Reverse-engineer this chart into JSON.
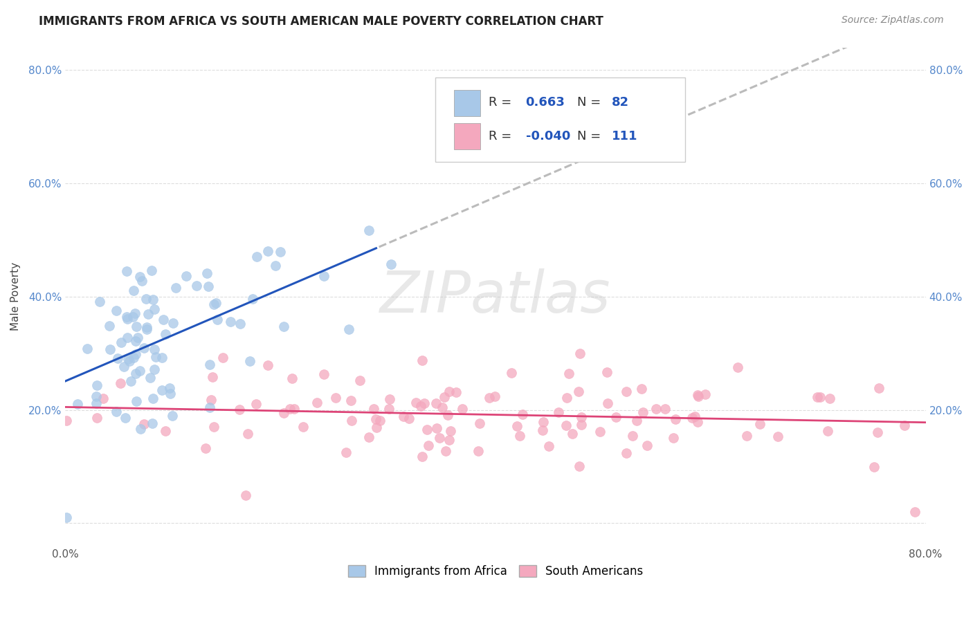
{
  "title": "IMMIGRANTS FROM AFRICA VS SOUTH AMERICAN MALE POVERTY CORRELATION CHART",
  "source": "Source: ZipAtlas.com",
  "ylabel": "Male Poverty",
  "africa_R": 0.663,
  "africa_N": 82,
  "south_R": -0.04,
  "south_N": 111,
  "xlim": [
    0.0,
    0.8
  ],
  "ylim": [
    -0.04,
    0.84
  ],
  "africa_color": "#A8C8E8",
  "south_color": "#F4A8BE",
  "africa_line_color": "#2255BB",
  "south_line_color": "#DD4477",
  "dash_color": "#BBBBBB",
  "watermark": "ZIPatlas",
  "legend_africa": "Immigrants from Africa",
  "legend_south": "South Americans",
  "yticks": [
    0.0,
    0.2,
    0.4,
    0.6,
    0.8
  ],
  "ytick_labels": [
    "",
    "20.0%",
    "40.0%",
    "60.0%",
    "80.0%"
  ],
  "xticks": [
    0.0,
    0.1,
    0.2,
    0.3,
    0.4,
    0.5,
    0.6,
    0.7,
    0.8
  ],
  "xtick_labels": [
    "0.0%",
    "",
    "",
    "",
    "",
    "",
    "",
    "",
    "80.0%"
  ],
  "grid_color": "#DDDDDD",
  "title_fontsize": 12,
  "tick_fontsize": 11,
  "legend_fontsize": 12
}
